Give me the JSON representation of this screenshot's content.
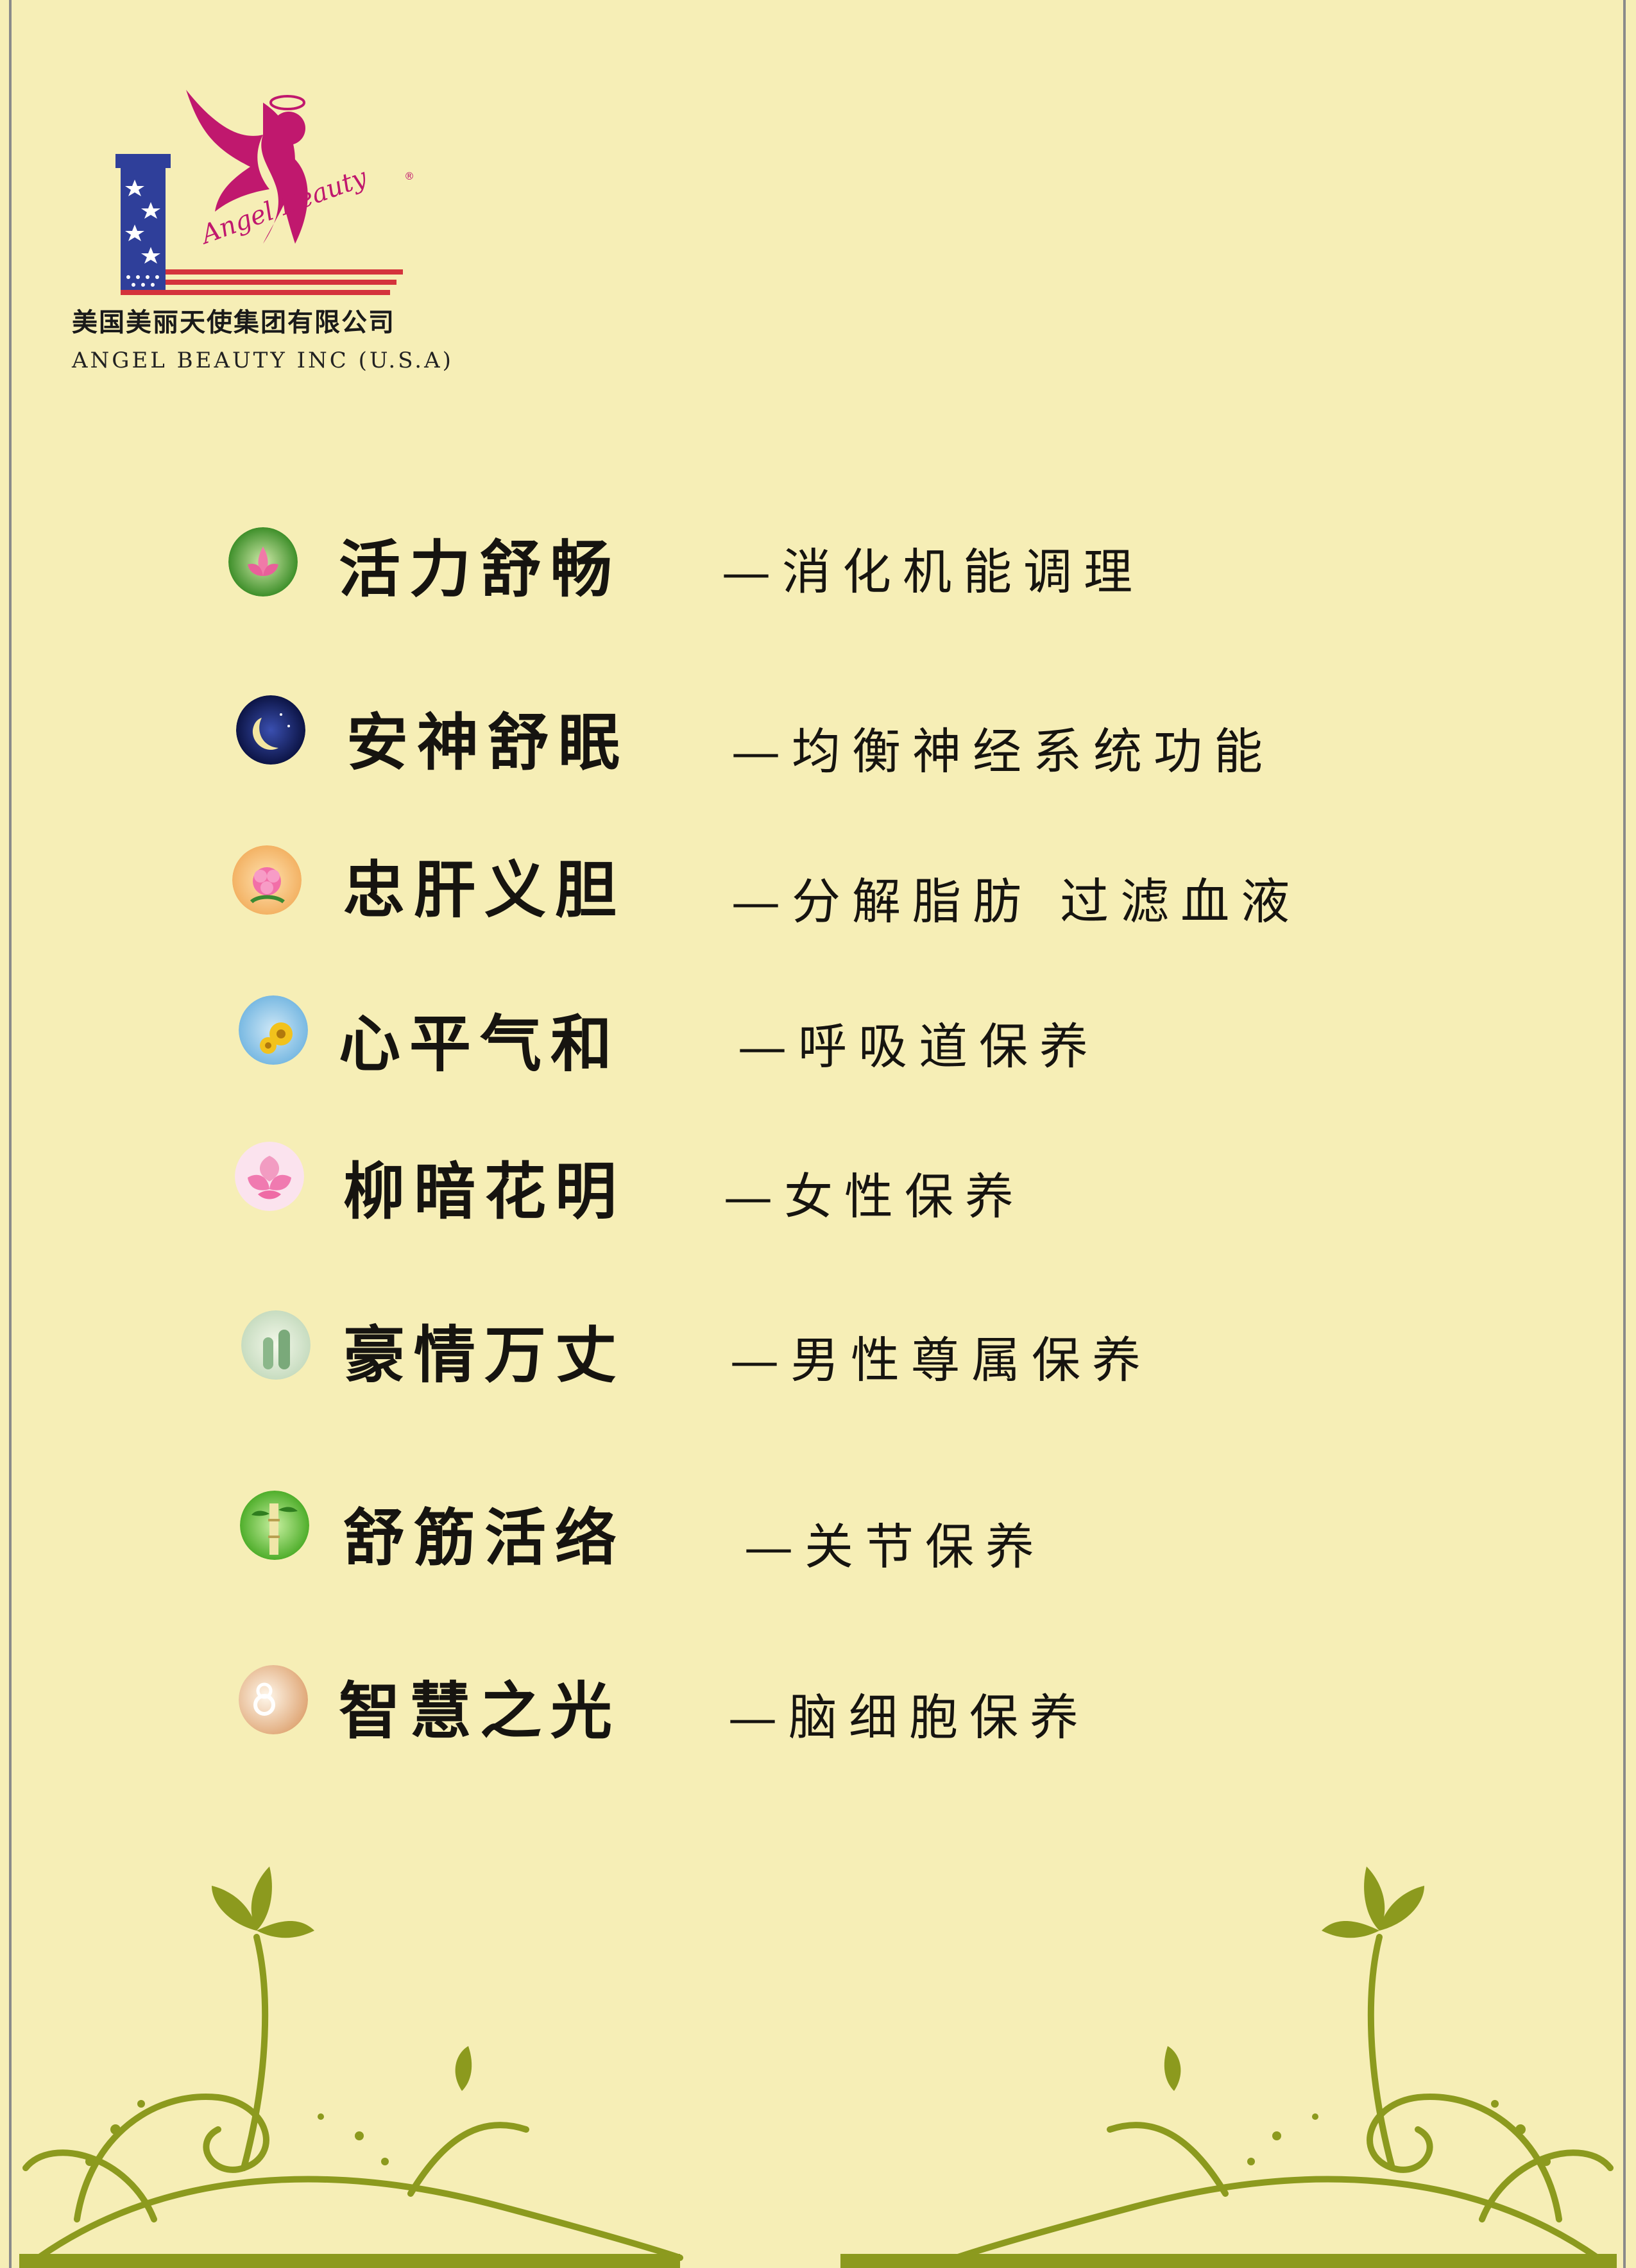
{
  "company": {
    "name_cn": "美国美丽天使集团有限公司",
    "name_en": "ANGEL BEAUTY INC (U.S.A)",
    "logo_script": "Angel Beauty",
    "logo_mark": "®"
  },
  "items": [
    {
      "title": "活力舒畅",
      "desc": "—消化机能调理",
      "icon": "lotus-icon"
    },
    {
      "title": "安神舒眠",
      "desc": "—均衡神经系统功能",
      "icon": "moon-icon"
    },
    {
      "title": "忠肝义胆",
      "desc": "—分解脂肪 过滤血液",
      "icon": "flower-icon"
    },
    {
      "title": "心平气和",
      "desc": "—呼吸道保养",
      "icon": "sunflower-icon"
    },
    {
      "title": "柳暗花明",
      "desc": "—女性保养",
      "icon": "peony-icon"
    },
    {
      "title": "豪情万丈",
      "desc": "—男性尊属保养",
      "icon": "cactus-icon"
    },
    {
      "title": "舒筋活络",
      "desc": "—关节保养",
      "icon": "bamboo-icon"
    },
    {
      "title": "智慧之光",
      "desc": "—脑细胞保养",
      "icon": "light-icon"
    }
  ],
  "colors": {
    "background": "#f6eeb6",
    "logo_magenta": "#c0186e",
    "flag_blue": "#2f3f9a",
    "flag_red": "#d4333c",
    "floral_olive": "#8c9a1e",
    "text": "#161410"
  }
}
